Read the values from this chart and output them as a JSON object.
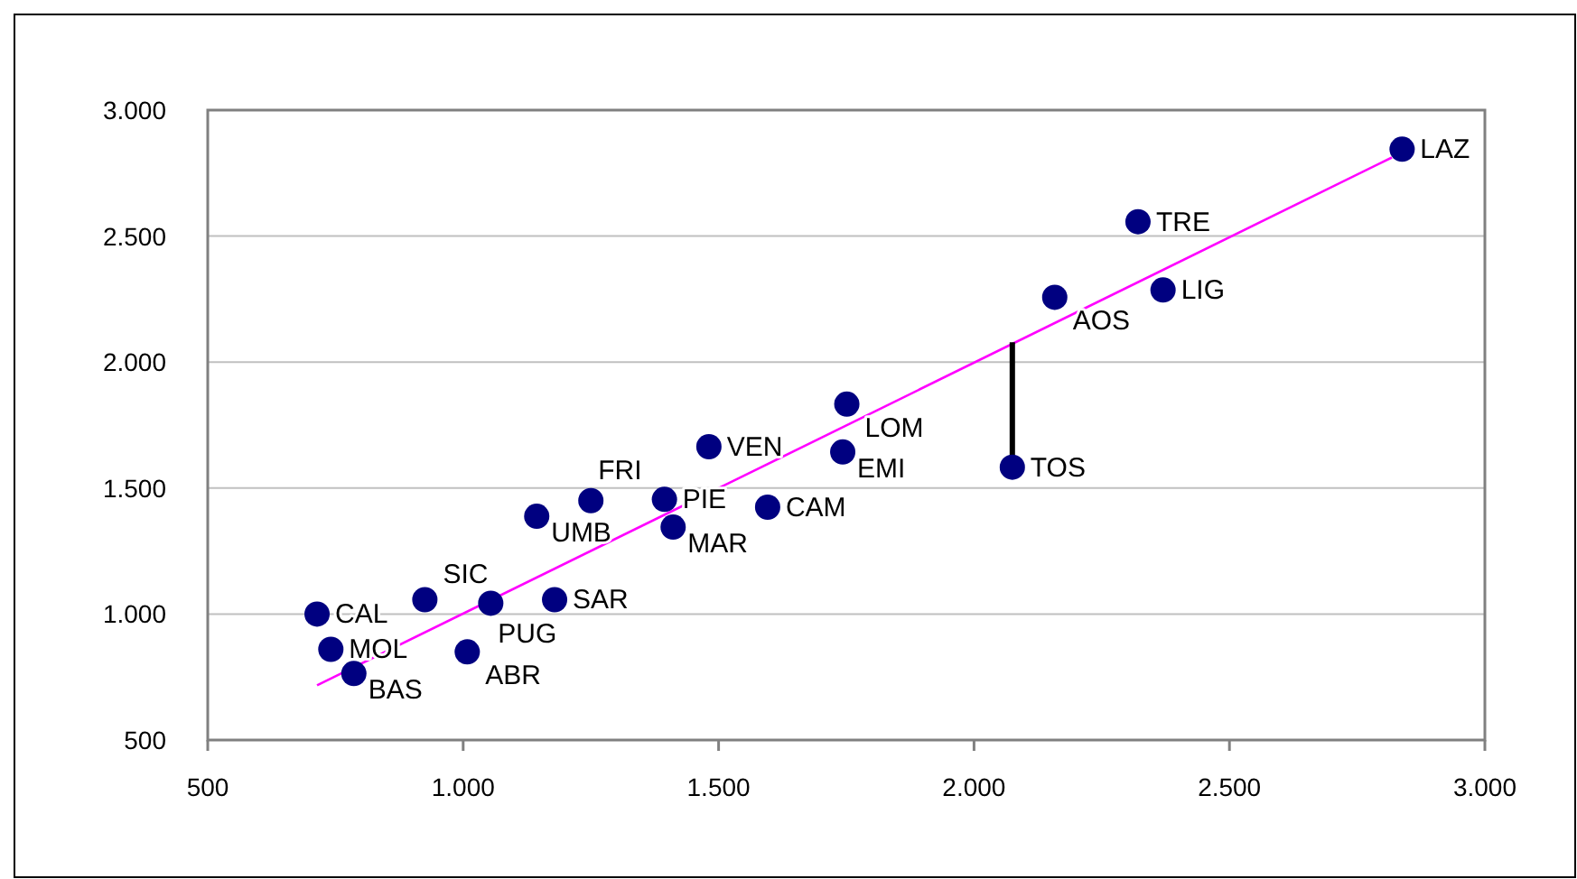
{
  "chart_data": {
    "type": "scatter",
    "marker": "circle",
    "grid": "y",
    "xlim": [
      500,
      3000
    ],
    "ylim": [
      500,
      3000
    ],
    "xticks": [
      {
        "value": 500,
        "label": "500"
      },
      {
        "value": 1000,
        "label": "1.000"
      },
      {
        "value": 1500,
        "label": "1.500"
      },
      {
        "value": 2000,
        "label": "2.000"
      },
      {
        "value": 2500,
        "label": "2.500"
      },
      {
        "value": 3000,
        "label": "3.000"
      }
    ],
    "yticks": [
      {
        "value": 500,
        "label": "500"
      },
      {
        "value": 1000,
        "label": "1.000"
      },
      {
        "value": 1500,
        "label": "1.500"
      },
      {
        "value": 2000,
        "label": "2.000"
      },
      {
        "value": 2500,
        "label": "2.500"
      },
      {
        "value": 3000,
        "label": "3.000"
      }
    ],
    "series": [
      {
        "color": "#000080",
        "x": [
          714,
          741,
          786,
          925,
          1054,
          1008,
          1179,
          1144,
          1250,
          1394,
          1411,
          1481,
          1596,
          1751,
          1743,
          2075,
          2158,
          2321,
          2370,
          2838
        ],
        "values": [
          1000,
          860,
          764,
          1057,
          1043,
          850,
          1057,
          1388,
          1450,
          1455,
          1345,
          1664,
          1424,
          1833,
          1643,
          1583,
          2257,
          2557,
          2286,
          2845
        ]
      },
      {
        "type": "line",
        "color": "#ff00ff",
        "marker": "none",
        "x": [
          714,
          2818
        ],
        "values": [
          717,
          2812
        ]
      },
      {
        "type": "line",
        "color": "#000000",
        "marker": "none",
        "x": [
          2075,
          2075
        ],
        "values": [
          1583,
          2079
        ]
      }
    ],
    "annotations": [
      {
        "text": "CAL",
        "x": 714,
        "y": 1000
      },
      {
        "text": "MOL",
        "x": 741,
        "y": 860
      },
      {
        "text": "BAS",
        "x": 786,
        "y": 764
      },
      {
        "text": "SIC",
        "x": 925,
        "y": 1057
      },
      {
        "text": "PUG",
        "x": 1054,
        "y": 1043
      },
      {
        "text": "ABR",
        "x": 1008,
        "y": 850
      },
      {
        "text": "SAR",
        "x": 1179,
        "y": 1057
      },
      {
        "text": "UMB",
        "x": 1144,
        "y": 1388
      },
      {
        "text": "FRI",
        "x": 1250,
        "y": 1450
      },
      {
        "text": "PIE",
        "x": 1394,
        "y": 1455
      },
      {
        "text": "MAR",
        "x": 1411,
        "y": 1345
      },
      {
        "text": "VEN",
        "x": 1481,
        "y": 1664
      },
      {
        "text": "CAM",
        "x": 1596,
        "y": 1424
      },
      {
        "text": "LOM",
        "x": 1751,
        "y": 1833
      },
      {
        "text": "EMI",
        "x": 1743,
        "y": 1643
      },
      {
        "text": "TOS",
        "x": 2075,
        "y": 1583
      },
      {
        "text": "AOS",
        "x": 2158,
        "y": 2257
      },
      {
        "text": "TRE",
        "x": 2321,
        "y": 2557
      },
      {
        "text": "LIG",
        "x": 2370,
        "y": 2286
      },
      {
        "text": "LAZ",
        "x": 2838,
        "y": 2845
      }
    ]
  }
}
